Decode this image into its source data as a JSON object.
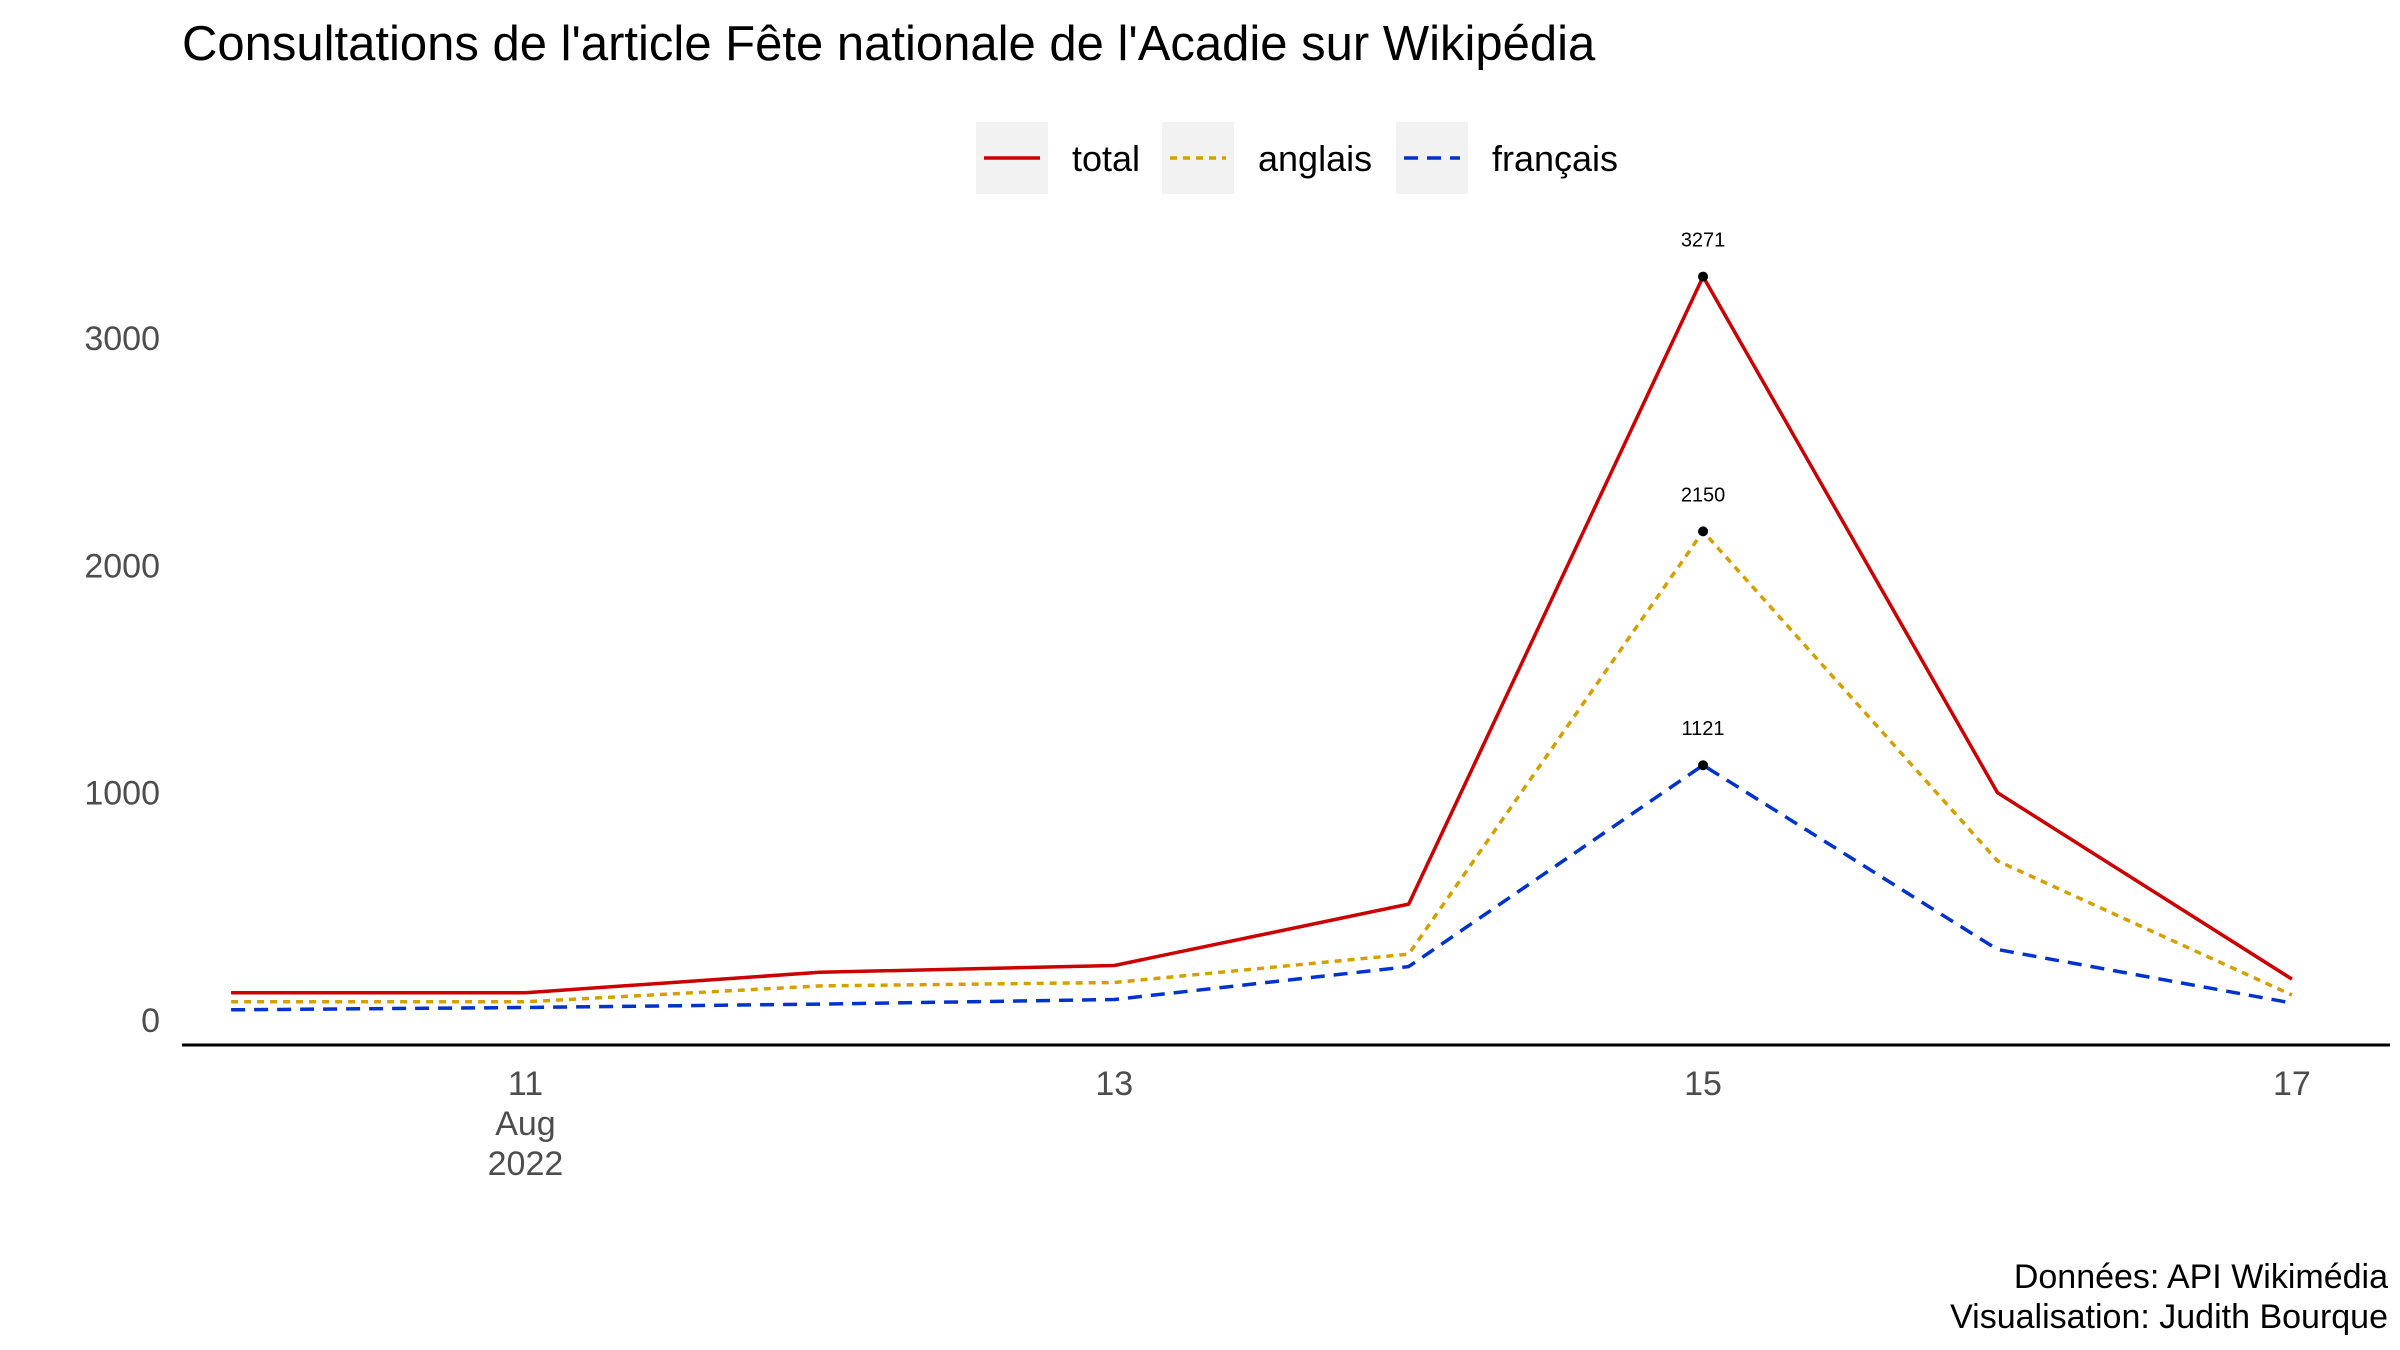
{
  "chart_data": {
    "type": "line",
    "title": "Consultations de l'article Fête nationale de l'Acadie sur Wikipédia",
    "xlabel": "",
    "ylabel": "",
    "x": [
      "2022-08-10",
      "2022-08-11",
      "2022-08-12",
      "2022-08-13",
      "2022-08-14",
      "2022-08-15",
      "2022-08-16",
      "2022-08-17"
    ],
    "xlim": [
      "2022-08-09T20:00",
      "2022-08-17T08:00"
    ],
    "ylim": [
      -110,
      3300
    ],
    "x_ticks": [
      {
        "date": "2022-08-11",
        "lines": [
          "11",
          "Aug",
          "2022"
        ]
      },
      {
        "date": "2022-08-13",
        "lines": [
          "13"
        ]
      },
      {
        "date": "2022-08-15",
        "lines": [
          "15"
        ]
      },
      {
        "date": "2022-08-17",
        "lines": [
          "17"
        ]
      }
    ],
    "y_ticks": [
      {
        "value": 0,
        "label": "0"
      },
      {
        "value": 1000,
        "label": "1000"
      },
      {
        "value": 2000,
        "label": "2000"
      },
      {
        "value": 3000,
        "label": "3000"
      }
    ],
    "series": [
      {
        "name": "total",
        "color": "#cc0000",
        "dash": "solid",
        "values": [
          120,
          120,
          210,
          240,
          510,
          3271,
          1000,
          180
        ]
      },
      {
        "name": "anglais",
        "color": "#d4a000",
        "dash": "dotted",
        "values": [
          80,
          80,
          150,
          165,
          290,
          2150,
          700,
          110
        ]
      },
      {
        "name": "français",
        "color": "#0033cc",
        "dash": "dashed",
        "values": [
          45,
          55,
          70,
          90,
          235,
          1121,
          310,
          75
        ]
      }
    ],
    "annotations": [
      {
        "x": "2022-08-15",
        "y": 3271,
        "label": "3271"
      },
      {
        "x": "2022-08-15",
        "y": 2150,
        "label": "2150"
      },
      {
        "x": "2022-08-15",
        "y": 1121,
        "label": "1121"
      }
    ],
    "legend_position": "top",
    "grid": false,
    "caption": [
      "Données: API Wikimédia",
      "Visualisation: Judith Bourque"
    ]
  }
}
